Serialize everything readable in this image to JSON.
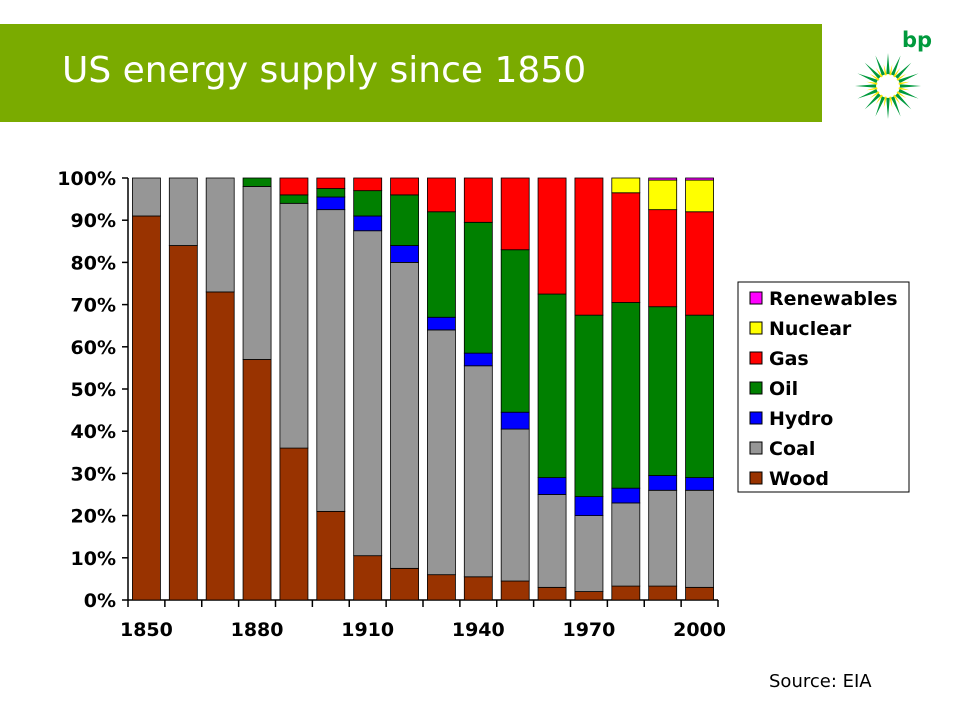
{
  "slide": {
    "title": "US energy supply since 1850",
    "source": "Source: EIA",
    "logo_text": "bp"
  },
  "colors": {
    "title_band": "#7aab00",
    "Wood": "#993300",
    "Coal": "#969696",
    "Hydro": "#0000ff",
    "Oil": "#008000",
    "Gas": "#ff0000",
    "Nuclear": "#ffff00",
    "Renewables": "#ff00ff",
    "logo_green": "#009a3d",
    "logo_yellow": "#ffe600"
  },
  "chart_data": {
    "type": "bar",
    "stacked": true,
    "percent": true,
    "categories": [
      "1850",
      "1860",
      "1870",
      "1880",
      "1890",
      "1900",
      "1910",
      "1920",
      "1930",
      "1940",
      "1950",
      "1960",
      "1970",
      "1980",
      "1990",
      "2000"
    ],
    "x_tick_labels": [
      "1850",
      "1880",
      "1910",
      "1940",
      "1970",
      "2000"
    ],
    "y_ticks": [
      "0%",
      "10%",
      "20%",
      "30%",
      "40%",
      "50%",
      "60%",
      "70%",
      "80%",
      "90%",
      "100%"
    ],
    "ylim": [
      0,
      100
    ],
    "legend_placement": "right",
    "legend_order": [
      "Renewables",
      "Nuclear",
      "Gas",
      "Oil",
      "Hydro",
      "Coal",
      "Wood"
    ],
    "series": [
      {
        "name": "Wood",
        "values": [
          91,
          84,
          73,
          57,
          36,
          21,
          10.5,
          7.5,
          6,
          5.5,
          4.5,
          3,
          2,
          3.3,
          3.3,
          3
        ]
      },
      {
        "name": "Coal",
        "values": [
          9,
          16,
          27,
          41,
          58,
          71.5,
          77,
          72.5,
          58,
          50,
          36,
          22,
          18,
          19.7,
          22.7,
          23
        ]
      },
      {
        "name": "Hydro",
        "values": [
          0,
          0,
          0,
          0,
          0,
          3,
          3.5,
          4,
          3,
          3,
          4,
          4,
          4.5,
          3.5,
          3.5,
          3
        ]
      },
      {
        "name": "Oil",
        "values": [
          0,
          0,
          0,
          2,
          2,
          2,
          6,
          12,
          25,
          31,
          38.5,
          43.5,
          43,
          44,
          40,
          38.5
        ]
      },
      {
        "name": "Gas",
        "values": [
          0,
          0,
          0,
          0,
          4,
          2.5,
          3,
          4,
          8,
          10.5,
          17,
          27.5,
          32.5,
          26,
          23,
          24.5
        ]
      },
      {
        "name": "Nuclear",
        "values": [
          0,
          0,
          0,
          0,
          0,
          0,
          0,
          0,
          0,
          0,
          0,
          0,
          0,
          3.5,
          7,
          7.5
        ]
      },
      {
        "name": "Renewables",
        "values": [
          0,
          0,
          0,
          0,
          0,
          0,
          0,
          0,
          0,
          0,
          0,
          0,
          0,
          0,
          0.5,
          0.5
        ]
      }
    ]
  }
}
